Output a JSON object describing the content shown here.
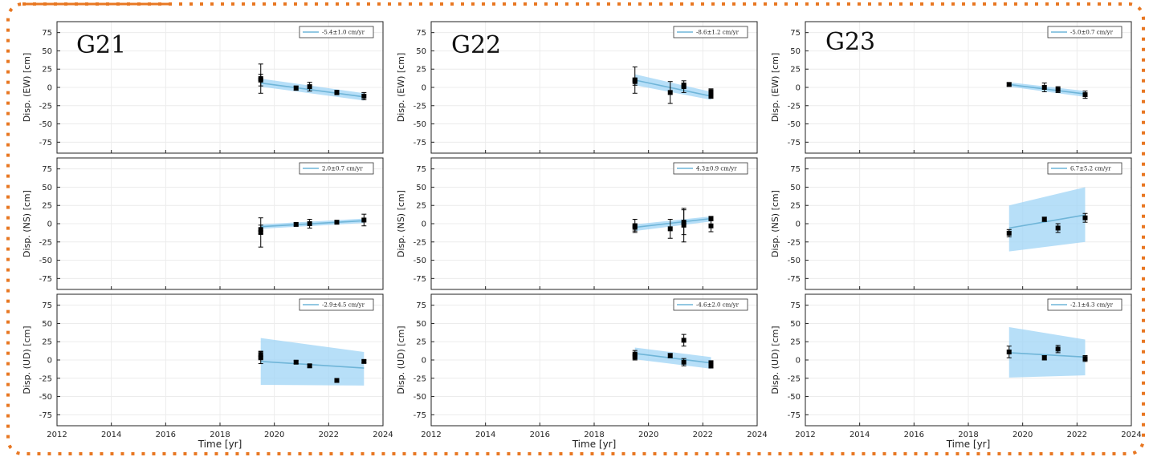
{
  "colors": {
    "frame": "#e87722",
    "fit_line": "#6fb5d8",
    "band": "#9fd4f5",
    "marker": "#000000"
  },
  "stations": [
    {
      "name": "G21"
    },
    {
      "name": "G22"
    },
    {
      "name": "G23"
    }
  ],
  "chart_data": [
    {
      "type": "scatter",
      "station": "G21",
      "component": "EW",
      "ylabel": "Disp. (EW) [cm]",
      "xlabel": "",
      "legend": "-5.4±1.0 cm/yr",
      "xlim": [
        2012,
        2024
      ],
      "ylim": [
        -90,
        90
      ],
      "xticks": [
        "2012",
        "2014",
        "2016",
        "2018",
        "2020",
        "2022",
        "2024"
      ],
      "yticks": [
        "75",
        "50",
        "25",
        "0",
        "-25",
        "-50",
        "-75"
      ],
      "points": [
        {
          "x": 2019.5,
          "y": 12,
          "err": 20
        },
        {
          "x": 2019.5,
          "y": 10,
          "err": 8
        },
        {
          "x": 2020.8,
          "y": -1,
          "err": 3
        },
        {
          "x": 2021.3,
          "y": 1,
          "err": 6
        },
        {
          "x": 2022.3,
          "y": -7,
          "err": 3
        },
        {
          "x": 2023.3,
          "y": -12,
          "err": 5
        }
      ],
      "fit": {
        "x": [
          2019.5,
          2023.3
        ],
        "y": [
          6,
          -13
        ]
      },
      "band": {
        "x": [
          2019.5,
          2023.3
        ],
        "upper": [
          12,
          -8
        ],
        "lower": [
          1,
          -18
        ]
      }
    },
    {
      "type": "scatter",
      "station": "G22",
      "component": "EW",
      "ylabel": "Disp. (EW) [cm]",
      "xlabel": "",
      "legend": "-8.6±1.2 cm/yr",
      "xlim": [
        2012,
        2024
      ],
      "ylim": [
        -90,
        90
      ],
      "xticks": [
        "2012",
        "2014",
        "2016",
        "2018",
        "2020",
        "2022",
        "2024"
      ],
      "yticks": [
        "75",
        "50",
        "25",
        "0",
        "-25",
        "-50",
        "-75"
      ],
      "points": [
        {
          "x": 2019.5,
          "y": 10,
          "err": 18
        },
        {
          "x": 2019.5,
          "y": 8,
          "err": 5
        },
        {
          "x": 2020.8,
          "y": -7,
          "err": 15
        },
        {
          "x": 2021.3,
          "y": 1,
          "err": 8
        },
        {
          "x": 2021.3,
          "y": 3,
          "err": 3
        },
        {
          "x": 2022.3,
          "y": -6,
          "err": 4
        },
        {
          "x": 2022.3,
          "y": -12,
          "err": 3
        }
      ],
      "fit": {
        "x": [
          2019.5,
          2022.3
        ],
        "y": [
          10,
          -12
        ]
      },
      "band": {
        "x": [
          2019.5,
          2022.3
        ],
        "upper": [
          18,
          -6
        ],
        "lower": [
          3,
          -17
        ]
      }
    },
    {
      "type": "scatter",
      "station": "G23",
      "component": "EW",
      "ylabel": "Disp. (EW) [cm]",
      "xlabel": "",
      "legend": "-5.0±0.7 cm/yr",
      "xlim": [
        2012,
        2024
      ],
      "ylim": [
        -90,
        90
      ],
      "xticks": [
        "2012",
        "2014",
        "2016",
        "2018",
        "2020",
        "2022",
        "2024"
      ],
      "yticks": [
        "75",
        "50",
        "25",
        "0",
        "-25",
        "-50",
        "-75"
      ],
      "points": [
        {
          "x": 2019.5,
          "y": 4,
          "err": 2
        },
        {
          "x": 2020.8,
          "y": 0,
          "err": 6
        },
        {
          "x": 2021.3,
          "y": -3,
          "err": 4
        },
        {
          "x": 2022.3,
          "y": -10,
          "err": 5
        }
      ],
      "fit": {
        "x": [
          2019.5,
          2022.3
        ],
        "y": [
          4,
          -9
        ]
      },
      "band": {
        "x": [
          2019.5,
          2022.3
        ],
        "upper": [
          7,
          -5
        ],
        "lower": [
          1,
          -13
        ]
      }
    },
    {
      "type": "scatter",
      "station": "G21",
      "component": "NS",
      "ylabel": "Disp. (NS) [cm]",
      "xlabel": "",
      "legend": "2.0±0.7 cm/yr",
      "xlim": [
        2012,
        2024
      ],
      "ylim": [
        -90,
        90
      ],
      "xticks": [
        "2012",
        "2014",
        "2016",
        "2018",
        "2020",
        "2022",
        "2024"
      ],
      "yticks": [
        "75",
        "50",
        "25",
        "0",
        "-25",
        "-50",
        "-75"
      ],
      "points": [
        {
          "x": 2019.5,
          "y": -12,
          "err": 20
        },
        {
          "x": 2019.5,
          "y": -8,
          "err": 6
        },
        {
          "x": 2020.8,
          "y": -1,
          "err": 2
        },
        {
          "x": 2021.3,
          "y": 0,
          "err": 6
        },
        {
          "x": 2022.3,
          "y": 2,
          "err": 2
        },
        {
          "x": 2023.3,
          "y": 5,
          "err": 8
        }
      ],
      "fit": {
        "x": [
          2019.5,
          2023.3
        ],
        "y": [
          -4,
          4
        ]
      },
      "band": {
        "x": [
          2019.5,
          2023.3
        ],
        "upper": [
          -1,
          7
        ],
        "lower": [
          -7,
          1
        ]
      }
    },
    {
      "type": "scatter",
      "station": "G22",
      "component": "NS",
      "ylabel": "Disp. (NS) [cm]",
      "xlabel": "",
      "legend": "4.3±0.9 cm/yr",
      "xlim": [
        2012,
        2024
      ],
      "ylim": [
        -90,
        90
      ],
      "xticks": [
        "2012",
        "2014",
        "2016",
        "2018",
        "2020",
        "2022",
        "2024"
      ],
      "yticks": [
        "75",
        "50",
        "25",
        "0",
        "-25",
        "-50",
        "-75"
      ],
      "points": [
        {
          "x": 2019.5,
          "y": -3,
          "err": 9
        },
        {
          "x": 2019.5,
          "y": -5,
          "err": 5
        },
        {
          "x": 2020.8,
          "y": -7,
          "err": 13
        },
        {
          "x": 2021.3,
          "y": -2,
          "err": 23
        },
        {
          "x": 2021.3,
          "y": 2,
          "err": 17
        },
        {
          "x": 2022.3,
          "y": 7,
          "err": 3
        },
        {
          "x": 2022.3,
          "y": -3,
          "err": 8
        }
      ],
      "fit": {
        "x": [
          2019.5,
          2022.3
        ],
        "y": [
          -5,
          7
        ]
      },
      "band": {
        "x": [
          2019.5,
          2022.3
        ],
        "upper": [
          -1,
          10
        ],
        "lower": [
          -10,
          3
        ]
      }
    },
    {
      "type": "scatter",
      "station": "G23",
      "component": "NS",
      "ylabel": "Disp. (NS) [cm]",
      "xlabel": "",
      "legend": "6.7±5.2 cm/yr",
      "xlim": [
        2012,
        2024
      ],
      "ylim": [
        -90,
        90
      ],
      "xticks": [
        "2012",
        "2014",
        "2016",
        "2018",
        "2020",
        "2022",
        "2024"
      ],
      "yticks": [
        "75",
        "50",
        "25",
        "0",
        "-25",
        "-50",
        "-75"
      ],
      "points": [
        {
          "x": 2019.5,
          "y": -13,
          "err": 5
        },
        {
          "x": 2020.8,
          "y": 6,
          "err": 3
        },
        {
          "x": 2021.3,
          "y": -6,
          "err": 6
        },
        {
          "x": 2022.3,
          "y": 8,
          "err": 6
        }
      ],
      "fit": {
        "x": [
          2019.5,
          2022.3
        ],
        "y": [
          -6,
          12
        ]
      },
      "band": {
        "x": [
          2019.5,
          2022.3
        ],
        "upper": [
          25,
          50
        ],
        "lower": [
          -38,
          -25
        ]
      }
    },
    {
      "type": "scatter",
      "station": "G21",
      "component": "UD",
      "ylabel": "Disp. (UD) [cm]",
      "xlabel": "Time [yr]",
      "legend": "-2.9±4.5 cm/yr",
      "xlim": [
        2012,
        2024
      ],
      "ylim": [
        -90,
        90
      ],
      "xticks": [
        "2012",
        "2014",
        "2016",
        "2018",
        "2020",
        "2022",
        "2024"
      ],
      "yticks": [
        "75",
        "50",
        "25",
        "0",
        "-25",
        "-50",
        "-75"
      ],
      "points": [
        {
          "x": 2019.5,
          "y": 3,
          "err": 8
        },
        {
          "x": 2019.5,
          "y": 7,
          "err": 5
        },
        {
          "x": 2020.8,
          "y": -3,
          "err": 2
        },
        {
          "x": 2021.3,
          "y": -8,
          "err": 2
        },
        {
          "x": 2022.3,
          "y": -28,
          "err": 2
        },
        {
          "x": 2023.3,
          "y": -2,
          "err": 2
        }
      ],
      "fit": {
        "x": [
          2019.5,
          2023.3
        ],
        "y": [
          -2,
          -11
        ]
      },
      "band": {
        "x": [
          2019.5,
          2023.3
        ],
        "upper": [
          30,
          11
        ],
        "lower": [
          -34,
          -35
        ]
      }
    },
    {
      "type": "scatter",
      "station": "G22",
      "component": "UD",
      "ylabel": "Disp. (UD) [cm]",
      "xlabel": "Time [yr]",
      "legend": "-4.6±2.0 cm/yr",
      "xlim": [
        2012,
        2024
      ],
      "ylim": [
        -90,
        90
      ],
      "xticks": [
        "2012",
        "2014",
        "2016",
        "2018",
        "2020",
        "2022",
        "2024"
      ],
      "yticks": [
        "75",
        "50",
        "25",
        "0",
        "-25",
        "-50",
        "-75"
      ],
      "points": [
        {
          "x": 2019.5,
          "y": 8,
          "err": 5
        },
        {
          "x": 2019.5,
          "y": 4,
          "err": 4
        },
        {
          "x": 2020.8,
          "y": 6,
          "err": 3
        },
        {
          "x": 2021.3,
          "y": 27,
          "err": 8
        },
        {
          "x": 2021.3,
          "y": -3,
          "err": 5
        },
        {
          "x": 2022.3,
          "y": -4,
          "err": 3
        },
        {
          "x": 2022.3,
          "y": -8,
          "err": 3
        }
      ],
      "fit": {
        "x": [
          2019.5,
          2022.3
        ],
        "y": [
          9,
          -4
        ]
      },
      "band": {
        "x": [
          2019.5,
          2022.3
        ],
        "upper": [
          17,
          4
        ],
        "lower": [
          1,
          -12
        ]
      }
    },
    {
      "type": "scatter",
      "station": "G23",
      "component": "UD",
      "ylabel": "Disp. (UD) [cm]",
      "xlabel": "Time [yr]",
      "legend": "-2.1±4.3 cm/yr",
      "xlim": [
        2012,
        2024
      ],
      "ylim": [
        -90,
        90
      ],
      "xticks": [
        "2012",
        "2014",
        "2016",
        "2018",
        "2020",
        "2022",
        "2024"
      ],
      "yticks": [
        "75",
        "50",
        "25",
        "0",
        "-25",
        "-50",
        "-75"
      ],
      "points": [
        {
          "x": 2019.5,
          "y": 11,
          "err": 8
        },
        {
          "x": 2020.8,
          "y": 3,
          "err": 3
        },
        {
          "x": 2021.3,
          "y": 15,
          "err": 5
        },
        {
          "x": 2022.3,
          "y": 2,
          "err": 4
        }
      ],
      "fit": {
        "x": [
          2019.5,
          2022.3
        ],
        "y": [
          10,
          4
        ]
      },
      "band": {
        "x": [
          2019.5,
          2022.3
        ],
        "upper": [
          45,
          28
        ],
        "lower": [
          -24,
          -21
        ]
      }
    }
  ]
}
